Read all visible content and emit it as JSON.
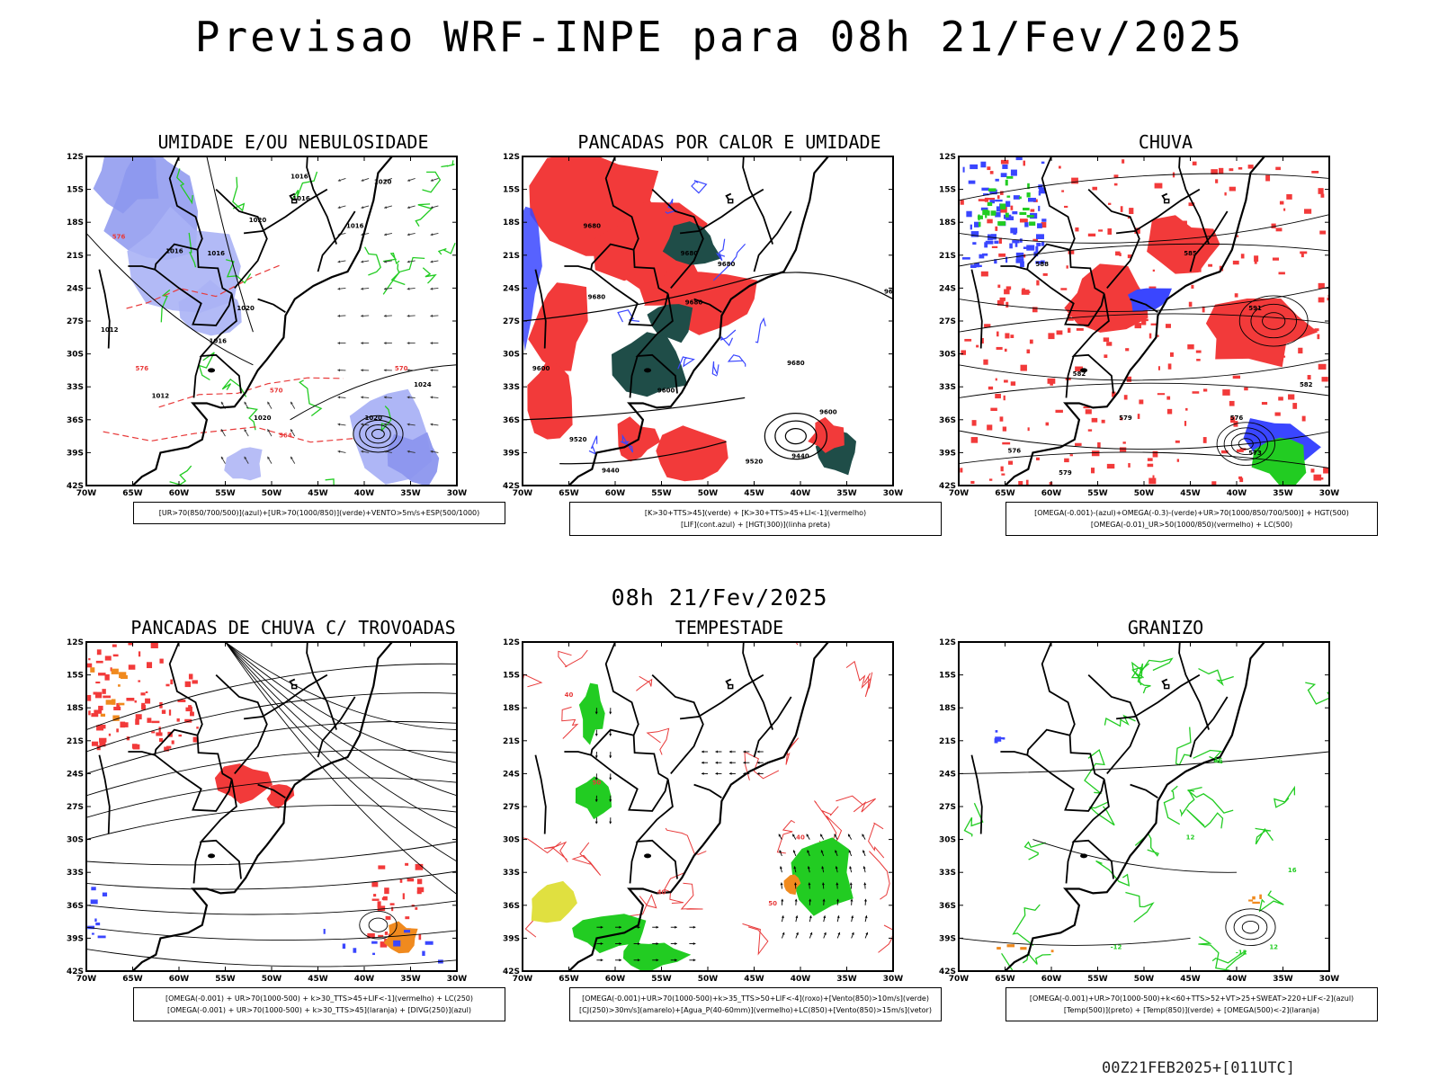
{
  "header": {
    "title": "Previsao WRF-INPE  para 08h 21/Fev/2025",
    "mid_date": "08h 21/Fev/2025",
    "footer": "00Z21FEB2025+[011UTC]"
  },
  "axes": {
    "lat_labels": [
      "12S",
      "15S",
      "18S",
      "21S",
      "24S",
      "27S",
      "30S",
      "33S",
      "36S",
      "39S",
      "42S"
    ],
    "lon_labels": [
      "70W",
      "65W",
      "60W",
      "55W",
      "50W",
      "45W",
      "40W",
      "35W",
      "30W"
    ]
  },
  "panels": [
    {
      "title": "UMIDADE E/OU NEBULOSIDADE",
      "legend": [
        "[UR>70(850/700/500)](azul)+[UR>70(1000/850)](verde)+VENTO>5m/s+ESP(500/1000)"
      ],
      "labels": [
        "1016",
        "1016",
        "1020",
        "1016",
        "1020",
        "1016",
        "1020",
        "1012",
        "1016",
        "1012",
        "1020",
        "1020",
        "1024",
        "1016",
        "576",
        "570",
        "570",
        "564",
        "576"
      ]
    },
    {
      "title": "PANCADAS POR CALOR E UMIDADE",
      "legend": [
        "[K>30+TTS>45](verde) + [K>30+TTS>45+LI<-1](vermelho)",
        "[LIF](cont.azul) + [HGT(300)](linha preta)"
      ],
      "labels": [
        "9600",
        "9680",
        "9680",
        "9680",
        "9680",
        "9680",
        "9600",
        "9600",
        "9520",
        "9440",
        "9440",
        "9520",
        "9680",
        "96"
      ]
    },
    {
      "title": "CHUVA",
      "legend": [
        "[OMEGA(-0.001)-(azul)+OMEGA(-0.3)-(verde)+UR>70(1000/850/700/500)] + HGT(500)",
        "[OMEGA(-0.01)_UR>50(1000/850)(vermelho) + LC(500)"
      ],
      "labels": [
        "585",
        "588",
        "591",
        "582",
        "579",
        "576",
        "573",
        "576",
        "579",
        "582"
      ]
    },
    {
      "title": "PANCADAS DE CHUVA C/ TROVOADAS",
      "legend": [
        "[OMEGA(-0.001) + UR>70(1000-500) + k>30_TTS>45+LIF<-1](vermelho) + LC(250)",
        "[OMEGA(-0.001) + UR>70(1000-500) + k>30_TTS>45](laranja) + [DIVG(250)](azul)"
      ],
      "labels": []
    },
    {
      "title": "TEMPESTADE",
      "legend": [
        "[OMEGA(-0.001)+UR>70(1000-500)+k>35_TTS>50+LIF<-4](roxo)+[Vento(850)>10m/s](verde)",
        "[CJ(250)>30m/s](amarelo)+[Agua_P(40-60mm)](vermelho)+LC(850)+[Vento(850)>15m/s](vetor)"
      ],
      "labels": [
        "40",
        "50",
        "40",
        "50",
        "40"
      ]
    },
    {
      "title": "GRANIZO",
      "legend": [
        "[OMEGA(-0.001)+UR>70(1000-500)+k<60+TTS>52+VT>25+SWEAT>220+LIF<-2](azul)",
        "[Temp(500)](preto) + [Temp(850)](verde) + [OMEGA(500)<-2](laranja)"
      ],
      "labels": [
        "-12",
        "12",
        "16",
        "12",
        "16",
        "-12"
      ]
    }
  ],
  "chart_data": [
    {
      "type": "heatmap",
      "title": "UMIDADE E/OU NEBULOSIDADE",
      "x_range": [
        "70W",
        "30W"
      ],
      "y_range": [
        "12S",
        "42S"
      ],
      "fields": [
        "UR>70 (850/700/500) azul",
        "UR>70 (1000/850) verde",
        "VENTO>5m/s",
        "ESP(500/1000)"
      ]
    },
    {
      "type": "heatmap",
      "title": "PANCADAS POR CALOR E UMIDADE",
      "x_range": [
        "70W",
        "30W"
      ],
      "y_range": [
        "12S",
        "42S"
      ],
      "fields": [
        "K>30+TTS>45 verde",
        "K>30+TTS>45+LI<-1 vermelho",
        "LIF cont.azul",
        "HGT(300) linha preta"
      ]
    },
    {
      "type": "heatmap",
      "title": "CHUVA",
      "x_range": [
        "70W",
        "30W"
      ],
      "y_range": [
        "12S",
        "42S"
      ],
      "fields": [
        "OMEGA(-0.001) azul",
        "OMEGA(-0.3) verde",
        "UR>50 vermelho",
        "HGT(500)"
      ]
    },
    {
      "type": "heatmap",
      "title": "PANCADAS DE CHUVA C/ TROVOADAS",
      "x_range": [
        "70W",
        "30W"
      ],
      "y_range": [
        "12S",
        "42S"
      ],
      "fields": [
        "vermelho",
        "laranja",
        "DIVG(250) azul",
        "LC(250)"
      ]
    },
    {
      "type": "heatmap",
      "title": "TEMPESTADE",
      "x_range": [
        "70W",
        "30W"
      ],
      "y_range": [
        "12S",
        "42S"
      ],
      "fields": [
        "roxo",
        "Vento(850)>10m/s verde",
        "CJ(250)>30m/s amarelo",
        "Agua_P vermelho",
        "LC(850)"
      ]
    },
    {
      "type": "heatmap",
      "title": "GRANIZO",
      "x_range": [
        "70W",
        "30W"
      ],
      "y_range": [
        "12S",
        "42S"
      ],
      "fields": [
        "azul",
        "Temp(500) preto",
        "Temp(850) verde",
        "OMEGA(500)<-2 laranja"
      ]
    }
  ],
  "colors": {
    "blue": "#3a46ff",
    "lightblue": "#aab2f5",
    "midblue": "#8c96ee",
    "green": "#22cc22",
    "red": "#f23a3a",
    "darkteal": "#1f4d48",
    "orange": "#f08a1e",
    "yellow": "#e0e040",
    "redline": "#e83a3a",
    "black": "#000000"
  }
}
